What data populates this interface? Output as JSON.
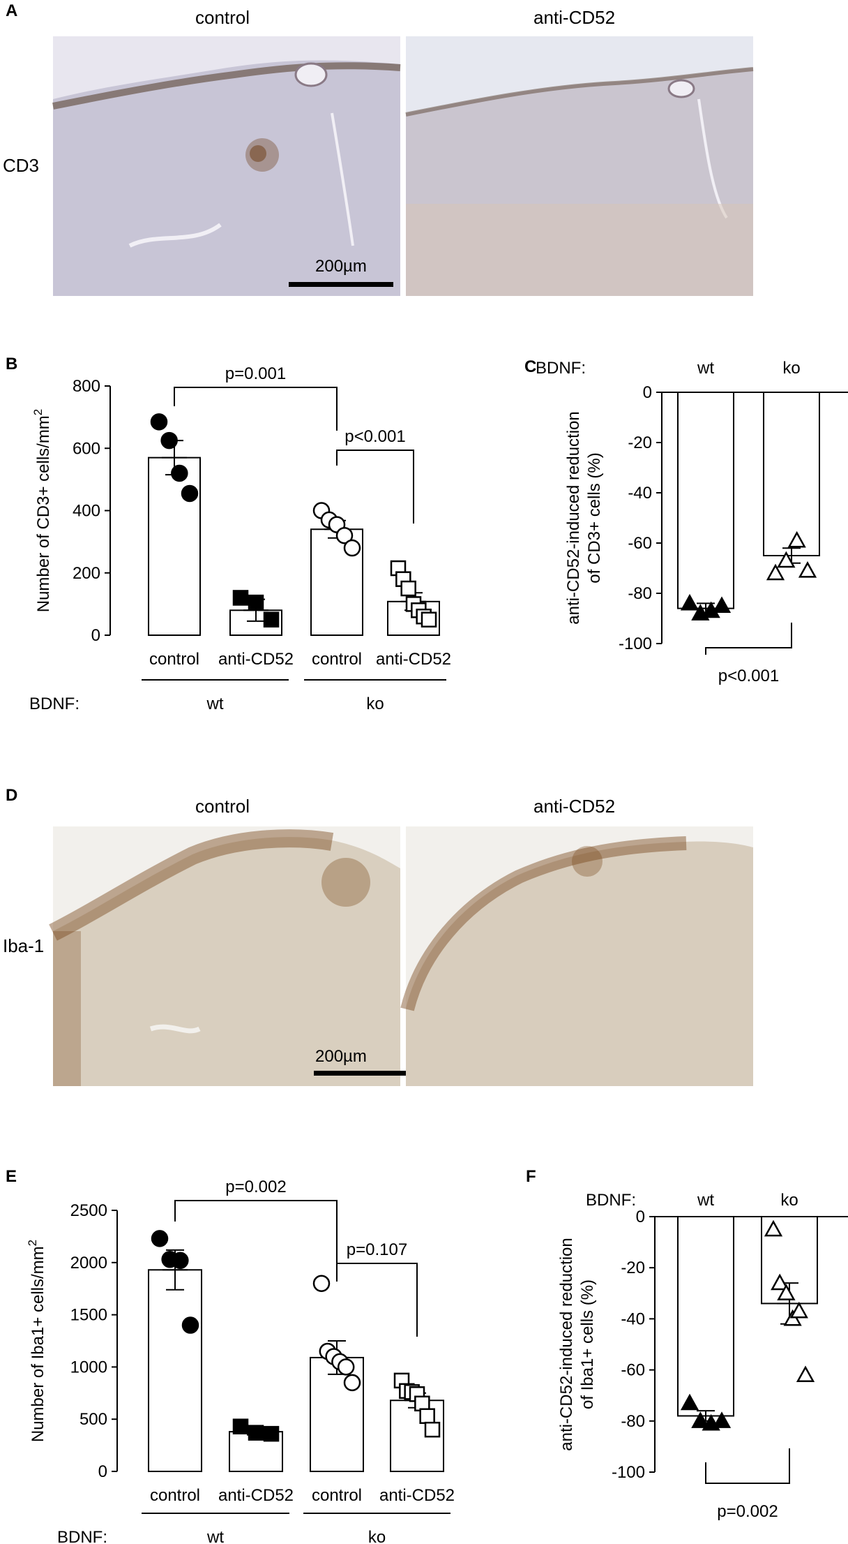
{
  "panels": {
    "A": {
      "label": "A",
      "col_left": "control",
      "col_right": "anti-CD52",
      "row_label": "CD3",
      "scalebar": "200µm"
    },
    "D": {
      "label": "D",
      "col_left": "control",
      "col_right": "anti-CD52",
      "row_label": "Iba-1",
      "scalebar": "200µm"
    },
    "B": {
      "label": "B"
    },
    "C": {
      "label": "C"
    },
    "E": {
      "label": "E"
    },
    "F": {
      "label": "F"
    }
  },
  "colors": {
    "tissue_cd3": "#c9c6d4",
    "tissue_iba1": "#d6cdbf",
    "stain": "#6b3a12"
  },
  "chart_data": [
    {
      "id": "B",
      "type": "bar",
      "ylabel": "Number of CD3+ cells/mm²",
      "ylim": [
        0,
        800
      ],
      "yticks": [
        0,
        200,
        400,
        600,
        800
      ],
      "categories": [
        "control",
        "anti-CD52",
        "control",
        "anti-CD52"
      ],
      "group_label_title": "BDNF:",
      "groups": [
        {
          "label": "wt",
          "span": [
            0,
            1
          ]
        },
        {
          "label": "ko",
          "span": [
            2,
            3
          ]
        }
      ],
      "means": [
        570,
        80,
        340,
        108
      ],
      "sem": [
        55,
        35,
        28,
        28
      ],
      "markers": [
        "filled-circle",
        "filled-square",
        "open-circle",
        "open-square"
      ],
      "points": [
        [
          685,
          625,
          520,
          455
        ],
        [
          120,
          105,
          50
        ],
        [
          400,
          370,
          355,
          320,
          280
        ],
        [
          215,
          180,
          150,
          100,
          80,
          60,
          50
        ]
      ],
      "brackets": [
        {
          "from": 0,
          "to": 2,
          "label": "p=0.001"
        },
        {
          "from": 2,
          "to": 3,
          "label": "p<0.001"
        }
      ]
    },
    {
      "id": "C",
      "type": "bar",
      "ylabel": "anti-CD52-induced reduction\nof CD3+ cells (%)",
      "ylim": [
        -100,
        0
      ],
      "yticks": [
        0,
        -20,
        -40,
        -60,
        -80,
        -100
      ],
      "group_label_title": "BDNF:",
      "categories": [
        "wt",
        "ko"
      ],
      "means": [
        -86,
        -65
      ],
      "sem": [
        2,
        3
      ],
      "markers": [
        "filled-triangle",
        "open-triangle"
      ],
      "points": [
        [
          -84,
          -88,
          -87,
          -85
        ],
        [
          -72,
          -67,
          -59,
          -71
        ]
      ],
      "brackets": [
        {
          "from": 0,
          "to": 1,
          "label": "p<0.001"
        }
      ]
    },
    {
      "id": "E",
      "type": "bar",
      "ylabel": "Number of Iba1+ cells/mm²",
      "ylim": [
        0,
        2500
      ],
      "yticks": [
        0,
        500,
        1000,
        1500,
        2000,
        2500
      ],
      "categories": [
        "control",
        "anti-CD52",
        "control",
        "anti-CD52"
      ],
      "group_label_title": "BDNF:",
      "groups": [
        {
          "label": "wt",
          "span": [
            0,
            1
          ]
        },
        {
          "label": "ko",
          "span": [
            2,
            3
          ]
        }
      ],
      "means": [
        1930,
        380,
        1090,
        680
      ],
      "sem": [
        190,
        30,
        160,
        70
      ],
      "markers": [
        "filled-circle",
        "filled-square",
        "open-circle",
        "open-square"
      ],
      "points": [
        [
          2230,
          2030,
          2020,
          1400
        ],
        [
          430,
          370,
          360
        ],
        [
          1800,
          1150,
          1100,
          1050,
          1000,
          850
        ],
        [
          870,
          770,
          760,
          740,
          650,
          530,
          400
        ]
      ],
      "brackets": [
        {
          "from": 0,
          "to": 2,
          "label": "p=0.002"
        },
        {
          "from": 2,
          "to": 3,
          "label": "p=0.107"
        }
      ]
    },
    {
      "id": "F",
      "type": "bar",
      "ylabel": "anti-CD52-induced reduction\nof Iba1+ cells (%)",
      "ylim": [
        -100,
        0
      ],
      "yticks": [
        0,
        -20,
        -40,
        -60,
        -80,
        -100
      ],
      "group_label_title": "BDNF:",
      "categories": [
        "wt",
        "ko"
      ],
      "means": [
        -78,
        -34
      ],
      "sem": [
        2,
        8
      ],
      "markers": [
        "filled-triangle",
        "open-triangle"
      ],
      "points": [
        [
          -73,
          -80,
          -81,
          -80
        ],
        [
          -5,
          -26,
          -30,
          -40,
          -37,
          -62
        ]
      ],
      "brackets": [
        {
          "from": 0,
          "to": 1,
          "label": "p=0.002"
        }
      ]
    }
  ]
}
